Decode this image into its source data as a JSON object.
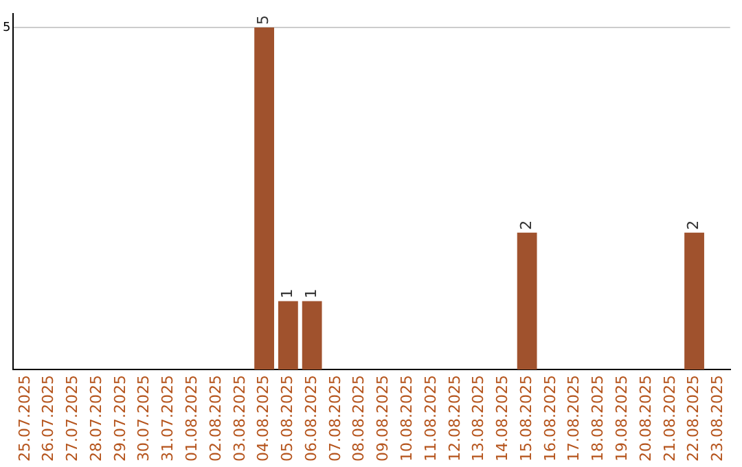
{
  "chart_data": {
    "type": "bar",
    "categories": [
      "25.07.2025",
      "26.07.2025",
      "27.07.2025",
      "28.07.2025",
      "29.07.2025",
      "30.07.2025",
      "31.07.2025",
      "01.08.2025",
      "02.08.2025",
      "03.08.2025",
      "04.08.2025",
      "05.08.2025",
      "06.08.2025",
      "07.08.2025",
      "08.08.2025",
      "09.08.2025",
      "10.08.2025",
      "11.08.2025",
      "12.08.2025",
      "13.08.2025",
      "14.08.2025",
      "15.08.2025",
      "16.08.2025",
      "17.08.2025",
      "18.08.2025",
      "19.08.2025",
      "20.08.2025",
      "21.08.2025",
      "22.08.2025",
      "23.08.2025"
    ],
    "values": [
      0,
      0,
      0,
      0,
      0,
      0,
      0,
      0,
      0,
      0,
      5,
      1,
      1,
      0,
      0,
      0,
      0,
      0,
      0,
      0,
      0,
      2,
      0,
      0,
      0,
      0,
      0,
      0,
      2,
      0
    ],
    "value_labels": [
      null,
      null,
      null,
      null,
      null,
      null,
      null,
      null,
      null,
      null,
      "5",
      "1",
      "1",
      null,
      null,
      null,
      null,
      null,
      null,
      null,
      null,
      "2",
      null,
      null,
      null,
      null,
      null,
      null,
      "2",
      null
    ],
    "color": "#a0522d",
    "ylim": [
      0,
      5.2
    ],
    "yticks": [
      5
    ],
    "grid": "y",
    "legend": false
  }
}
